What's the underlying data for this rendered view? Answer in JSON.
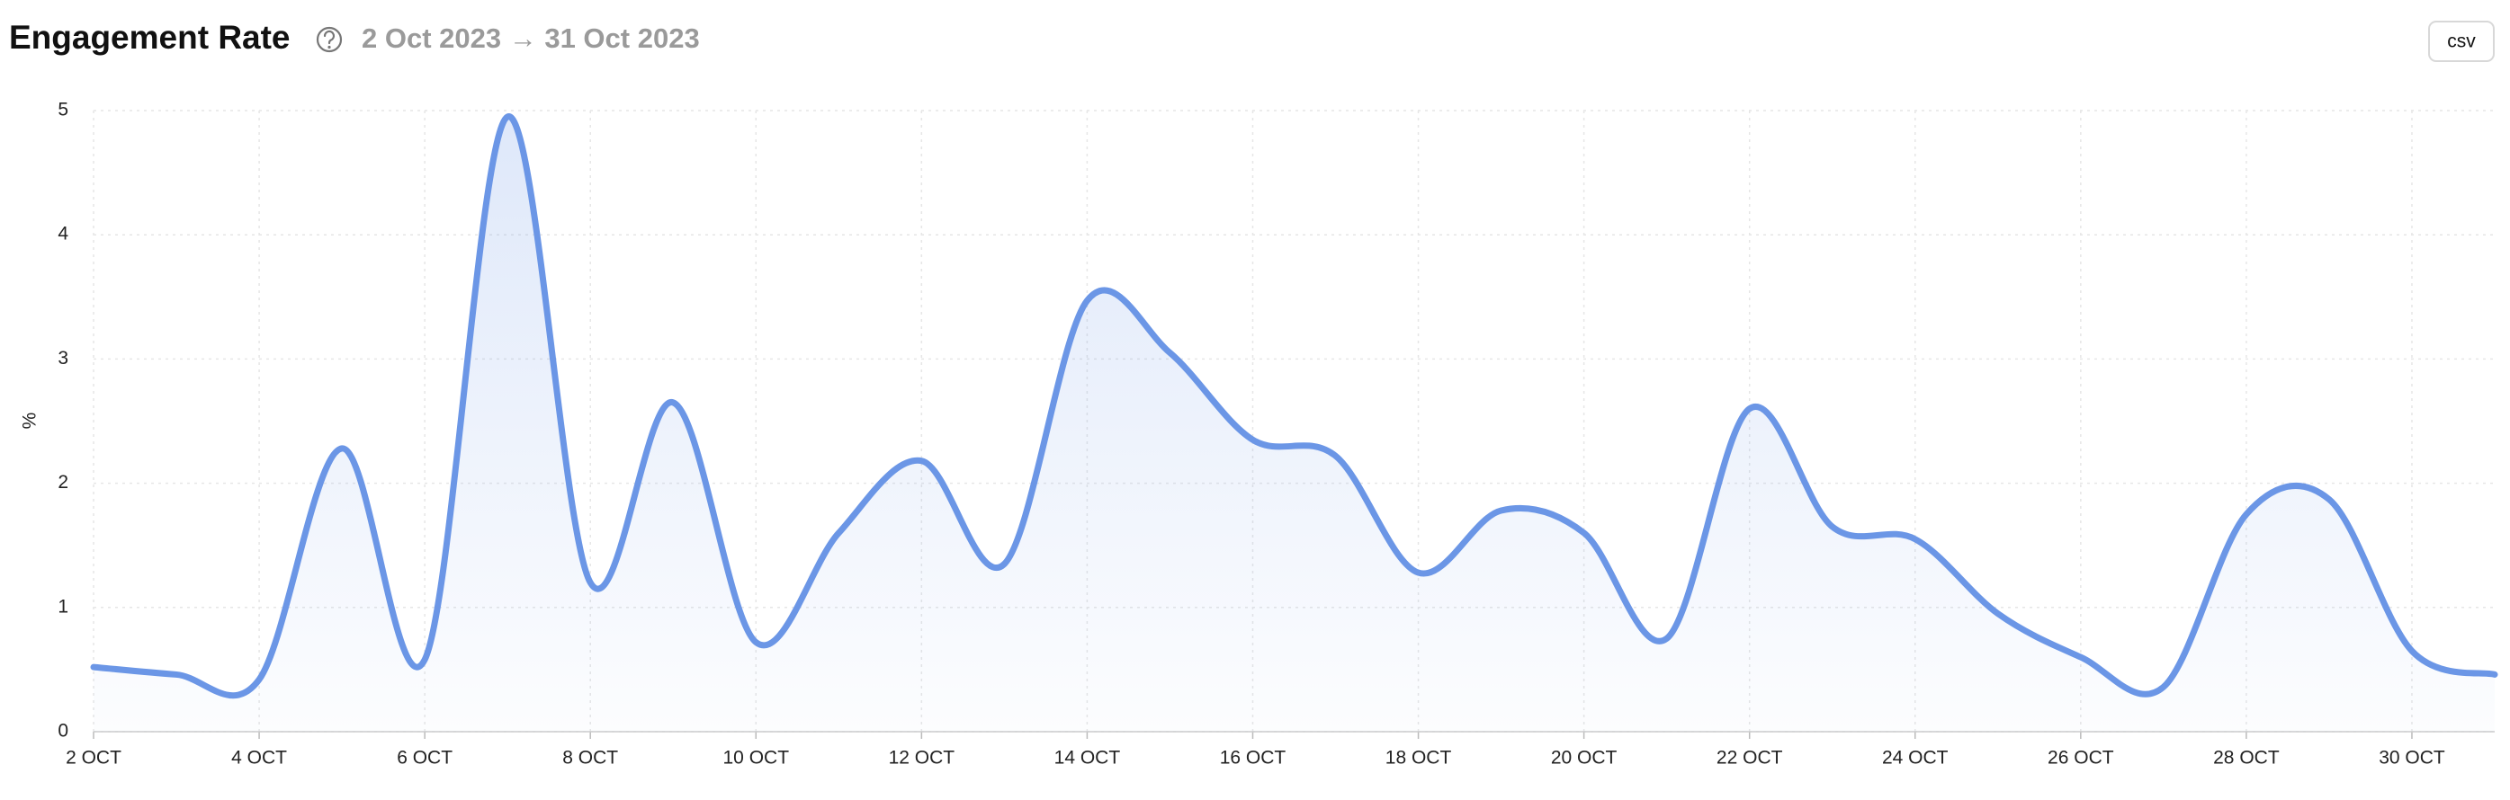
{
  "chart_data": {
    "type": "line",
    "title": "Engagement Rate",
    "subtitle": "2 Oct 2023 → 31 Oct 2023",
    "button": "csv",
    "y_label": "%",
    "categories": [
      "2 OCT",
      null,
      "4 OCT",
      null,
      "6 OCT",
      null,
      "8 OCT",
      null,
      "10 OCT",
      null,
      "12 OCT",
      null,
      "14 OCT",
      null,
      "16 OCT",
      null,
      "18 OCT",
      null,
      "20 OCT",
      null,
      "22 OCT",
      null,
      "24 OCT",
      null,
      "26 OCT",
      null,
      "28 OCT",
      null,
      "30 OCT",
      null
    ],
    "series": [
      {
        "name": "Engagement Rate",
        "color": "#6b96e6",
        "values": [
          0.52,
          0.46,
          0.42,
          2.28,
          0.58,
          4.95,
          1.2,
          2.65,
          0.72,
          1.6,
          2.18,
          1.35,
          3.47,
          3.05,
          2.35,
          2.22,
          1.28,
          1.78,
          1.6,
          0.75,
          2.6,
          1.65,
          1.55,
          0.95,
          0.6,
          0.36,
          1.75,
          1.87,
          0.65,
          0.46
        ]
      }
    ],
    "ylim": [
      0,
      5
    ],
    "yticks": [
      0,
      1,
      2,
      3,
      4,
      5
    ],
    "grid": true
  }
}
